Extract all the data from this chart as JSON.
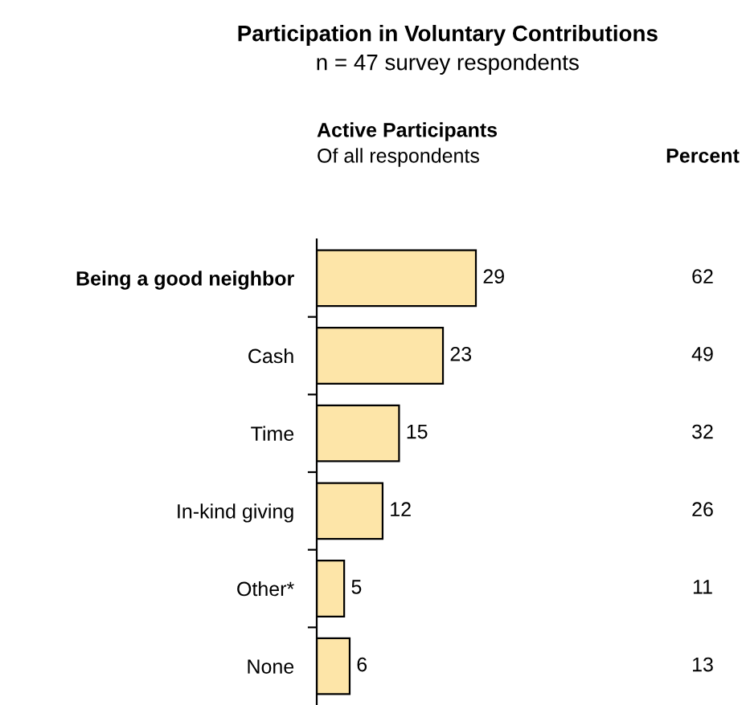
{
  "chart_data": {
    "type": "bar",
    "orientation": "horizontal",
    "title": "Participation in Voluntary Contributions",
    "subtitle": "n = 47 survey respondents",
    "categories": [
      "Being a good neighbor",
      "Cash",
      "Time",
      "In-kind giving",
      "Other*",
      "None"
    ],
    "values": [
      29,
      23,
      15,
      12,
      5,
      6
    ],
    "color": "#fde5a8",
    "data_labels": true,
    "grid": false,
    "annotations": [
      "Active Participants",
      "Of all respondents",
      "Percent",
      "62",
      "49",
      "32",
      "26",
      "11",
      "13"
    ]
  }
}
